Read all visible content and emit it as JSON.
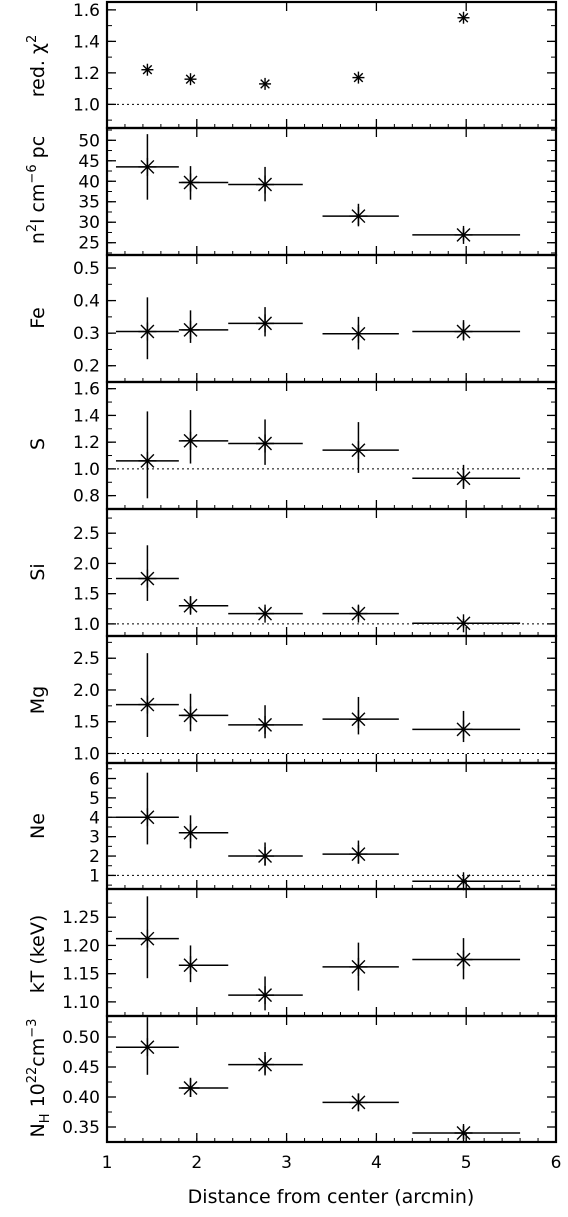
{
  "xaxis": {
    "label": "Distance from center (arcmin)",
    "ticks": [
      1,
      2,
      3,
      4,
      5,
      6
    ],
    "range": [
      1,
      6
    ]
  },
  "chart_data": [
    {
      "type": "scatter",
      "panel": "chi2",
      "ylabel": "red. χ²",
      "ylim": [
        0.85,
        1.65
      ],
      "yticks": [
        1.0,
        1.2,
        1.4,
        1.6
      ],
      "ytick_labels": [
        "1.0",
        "1.2",
        "1.4",
        "1.6"
      ],
      "reference_line": 1.0,
      "points": [
        {
          "x": 1.45,
          "y": 1.22
        },
        {
          "x": 1.93,
          "y": 1.16
        },
        {
          "x": 2.76,
          "y": 1.13
        },
        {
          "x": 3.8,
          "y": 1.17
        },
        {
          "x": 4.97,
          "y": 1.55
        }
      ]
    },
    {
      "type": "scatter",
      "panel": "norm",
      "ylabel": "n²l cm⁻⁶ pc",
      "ylim": [
        22,
        53
      ],
      "yticks": [
        25,
        30,
        35,
        40,
        45,
        50
      ],
      "ytick_labels": [
        "25",
        "30",
        "35",
        "40",
        "45",
        "50"
      ],
      "reference_line": null,
      "points": [
        {
          "x": 1.45,
          "y": 43.5,
          "xlo": 1.1,
          "xhi": 1.8,
          "ylo": 35.5,
          "yhi": 51.5
        },
        {
          "x": 1.93,
          "y": 39.7,
          "xlo": 1.8,
          "xhi": 2.35,
          "ylo": 35.5,
          "yhi": 43.7
        },
        {
          "x": 2.76,
          "y": 39.2,
          "xlo": 2.35,
          "xhi": 3.18,
          "ylo": 35.1,
          "yhi": 43.5
        },
        {
          "x": 3.8,
          "y": 31.5,
          "xlo": 3.4,
          "xhi": 4.25,
          "ylo": 29.0,
          "yhi": 34.5
        },
        {
          "x": 4.97,
          "y": 26.9,
          "xlo": 4.4,
          "xhi": 5.6,
          "ylo": 25.5,
          "yhi": 28.5
        }
      ]
    },
    {
      "type": "scatter",
      "panel": "Fe",
      "ylabel": "Fe",
      "ylim": [
        0.15,
        0.54
      ],
      "yticks": [
        0.2,
        0.3,
        0.4,
        0.5
      ],
      "ytick_labels": [
        "0.2",
        "0.3",
        "0.4",
        "0.5"
      ],
      "reference_line": null,
      "points": [
        {
          "x": 1.45,
          "y": 0.305,
          "xlo": 1.1,
          "xhi": 1.8,
          "ylo": 0.22,
          "yhi": 0.41
        },
        {
          "x": 1.93,
          "y": 0.31,
          "xlo": 1.8,
          "xhi": 2.35,
          "ylo": 0.27,
          "yhi": 0.37
        },
        {
          "x": 2.76,
          "y": 0.33,
          "xlo": 2.35,
          "xhi": 3.18,
          "ylo": 0.29,
          "yhi": 0.38
        },
        {
          "x": 3.8,
          "y": 0.298,
          "xlo": 3.4,
          "xhi": 4.25,
          "ylo": 0.25,
          "yhi": 0.35
        },
        {
          "x": 4.97,
          "y": 0.305,
          "xlo": 4.4,
          "xhi": 5.6,
          "ylo": 0.28,
          "yhi": 0.34
        }
      ]
    },
    {
      "type": "scatter",
      "panel": "S",
      "ylabel": "S",
      "ylim": [
        0.7,
        1.65
      ],
      "yticks": [
        0.8,
        1.0,
        1.2,
        1.4,
        1.6
      ],
      "ytick_labels": [
        "0.8",
        "1.0",
        "1.2",
        "1.4",
        "1.6"
      ],
      "reference_line": 1.0,
      "points": [
        {
          "x": 1.45,
          "y": 1.06,
          "xlo": 1.1,
          "xhi": 1.8,
          "ylo": 0.78,
          "yhi": 1.43
        },
        {
          "x": 1.93,
          "y": 1.21,
          "xlo": 1.8,
          "xhi": 2.35,
          "ylo": 1.04,
          "yhi": 1.44
        },
        {
          "x": 2.76,
          "y": 1.19,
          "xlo": 2.35,
          "xhi": 3.18,
          "ylo": 1.03,
          "yhi": 1.37
        },
        {
          "x": 3.8,
          "y": 1.14,
          "xlo": 3.4,
          "xhi": 4.25,
          "ylo": 0.97,
          "yhi": 1.35
        },
        {
          "x": 4.97,
          "y": 0.93,
          "xlo": 4.4,
          "xhi": 5.6,
          "ylo": 0.85,
          "yhi": 1.03
        }
      ]
    },
    {
      "type": "scatter",
      "panel": "Si",
      "ylabel": "Si",
      "ylim": [
        0.8,
        2.9
      ],
      "yticks": [
        1.0,
        1.5,
        2.0,
        2.5
      ],
      "ytick_labels": [
        "1.0",
        "1.5",
        "2.0",
        "2.5"
      ],
      "reference_line": 1.0,
      "points": [
        {
          "x": 1.45,
          "y": 1.75,
          "xlo": 1.1,
          "xhi": 1.8,
          "ylo": 1.38,
          "yhi": 2.3
        },
        {
          "x": 1.93,
          "y": 1.3,
          "xlo": 1.8,
          "xhi": 2.35,
          "ylo": 1.17,
          "yhi": 1.46
        },
        {
          "x": 2.76,
          "y": 1.17,
          "xlo": 2.35,
          "xhi": 3.18,
          "ylo": 1.09,
          "yhi": 1.27
        },
        {
          "x": 3.8,
          "y": 1.17,
          "xlo": 3.4,
          "xhi": 4.25,
          "ylo": 1.07,
          "yhi": 1.3
        },
        {
          "x": 4.97,
          "y": 1.01,
          "xlo": 4.4,
          "xhi": 5.6,
          "ylo": 0.94,
          "yhi": 1.08
        }
      ]
    },
    {
      "type": "scatter",
      "panel": "Mg",
      "ylabel": "Mg",
      "ylim": [
        0.85,
        2.85
      ],
      "yticks": [
        1.0,
        1.5,
        2.0,
        2.5
      ],
      "ytick_labels": [
        "1.0",
        "1.5",
        "2.0",
        "2.5"
      ],
      "reference_line": 1.0,
      "points": [
        {
          "x": 1.45,
          "y": 1.77,
          "xlo": 1.1,
          "xhi": 1.8,
          "ylo": 1.26,
          "yhi": 2.58
        },
        {
          "x": 1.93,
          "y": 1.6,
          "xlo": 1.8,
          "xhi": 2.35,
          "ylo": 1.35,
          "yhi": 1.94
        },
        {
          "x": 2.76,
          "y": 1.45,
          "xlo": 2.35,
          "xhi": 3.18,
          "ylo": 1.24,
          "yhi": 1.76
        },
        {
          "x": 3.8,
          "y": 1.54,
          "xlo": 3.4,
          "xhi": 4.25,
          "ylo": 1.3,
          "yhi": 1.89
        },
        {
          "x": 4.97,
          "y": 1.38,
          "xlo": 4.4,
          "xhi": 5.6,
          "ylo": 1.18,
          "yhi": 1.67
        }
      ]
    },
    {
      "type": "scatter",
      "panel": "Ne",
      "ylabel": "Ne",
      "ylim": [
        0.3,
        6.8
      ],
      "yticks": [
        1,
        2,
        3,
        4,
        5,
        6
      ],
      "ytick_labels": [
        "1",
        "2",
        "3",
        "4",
        "5",
        "6"
      ],
      "reference_line": 1.0,
      "points": [
        {
          "x": 1.45,
          "y": 4.0,
          "xlo": 1.1,
          "xhi": 1.8,
          "ylo": 2.6,
          "yhi": 6.3
        },
        {
          "x": 1.93,
          "y": 3.2,
          "xlo": 1.8,
          "xhi": 2.35,
          "ylo": 2.4,
          "yhi": 4.1
        },
        {
          "x": 2.76,
          "y": 2.0,
          "xlo": 2.35,
          "xhi": 3.18,
          "ylo": 1.5,
          "yhi": 2.7
        },
        {
          "x": 3.8,
          "y": 2.1,
          "xlo": 3.4,
          "xhi": 4.25,
          "ylo": 1.6,
          "yhi": 2.8
        },
        {
          "x": 4.97,
          "y": 0.7,
          "xlo": 4.4,
          "xhi": 5.6,
          "ylo": 0.5,
          "yhi": 1.0
        }
      ]
    },
    {
      "type": "scatter",
      "panel": "kT",
      "ylabel": "kT (keV)",
      "ylim": [
        1.075,
        1.3
      ],
      "yticks": [
        1.1,
        1.15,
        1.2,
        1.25
      ],
      "ytick_labels": [
        "1.10",
        "1.15",
        "1.20",
        "1.25"
      ],
      "reference_line": null,
      "points": [
        {
          "x": 1.45,
          "y": 1.212,
          "xlo": 1.1,
          "xhi": 1.8,
          "ylo": 1.142,
          "yhi": 1.287
        },
        {
          "x": 1.93,
          "y": 1.165,
          "xlo": 1.8,
          "xhi": 2.35,
          "ylo": 1.135,
          "yhi": 1.2
        },
        {
          "x": 2.76,
          "y": 1.112,
          "xlo": 2.35,
          "xhi": 3.18,
          "ylo": 1.085,
          "yhi": 1.145
        },
        {
          "x": 3.8,
          "y": 1.162,
          "xlo": 3.4,
          "xhi": 4.25,
          "ylo": 1.12,
          "yhi": 1.205
        },
        {
          "x": 4.97,
          "y": 1.175,
          "xlo": 4.4,
          "xhi": 5.6,
          "ylo": 1.14,
          "yhi": 1.213
        }
      ]
    },
    {
      "type": "scatter",
      "panel": "NH",
      "ylabel": "N_H 10²²cm⁻³",
      "ylim": [
        0.325,
        0.535
      ],
      "yticks": [
        0.35,
        0.4,
        0.45,
        0.5
      ],
      "ytick_labels": [
        "0.35",
        "0.40",
        "0.45",
        "0.50"
      ],
      "reference_line": null,
      "points": [
        {
          "x": 1.45,
          "y": 0.483,
          "xlo": 1.1,
          "xhi": 1.8,
          "ylo": 0.437,
          "yhi": 0.533
        },
        {
          "x": 1.93,
          "y": 0.415,
          "xlo": 1.8,
          "xhi": 2.35,
          "ylo": 0.4,
          "yhi": 0.432
        },
        {
          "x": 2.76,
          "y": 0.454,
          "xlo": 2.35,
          "xhi": 3.18,
          "ylo": 0.436,
          "yhi": 0.475
        },
        {
          "x": 3.8,
          "y": 0.391,
          "xlo": 3.4,
          "xhi": 4.25,
          "ylo": 0.377,
          "yhi": 0.406
        },
        {
          "x": 4.97,
          "y": 0.34,
          "xlo": 4.4,
          "xhi": 5.6,
          "ylo": 0.33,
          "yhi": 0.352
        }
      ]
    }
  ]
}
